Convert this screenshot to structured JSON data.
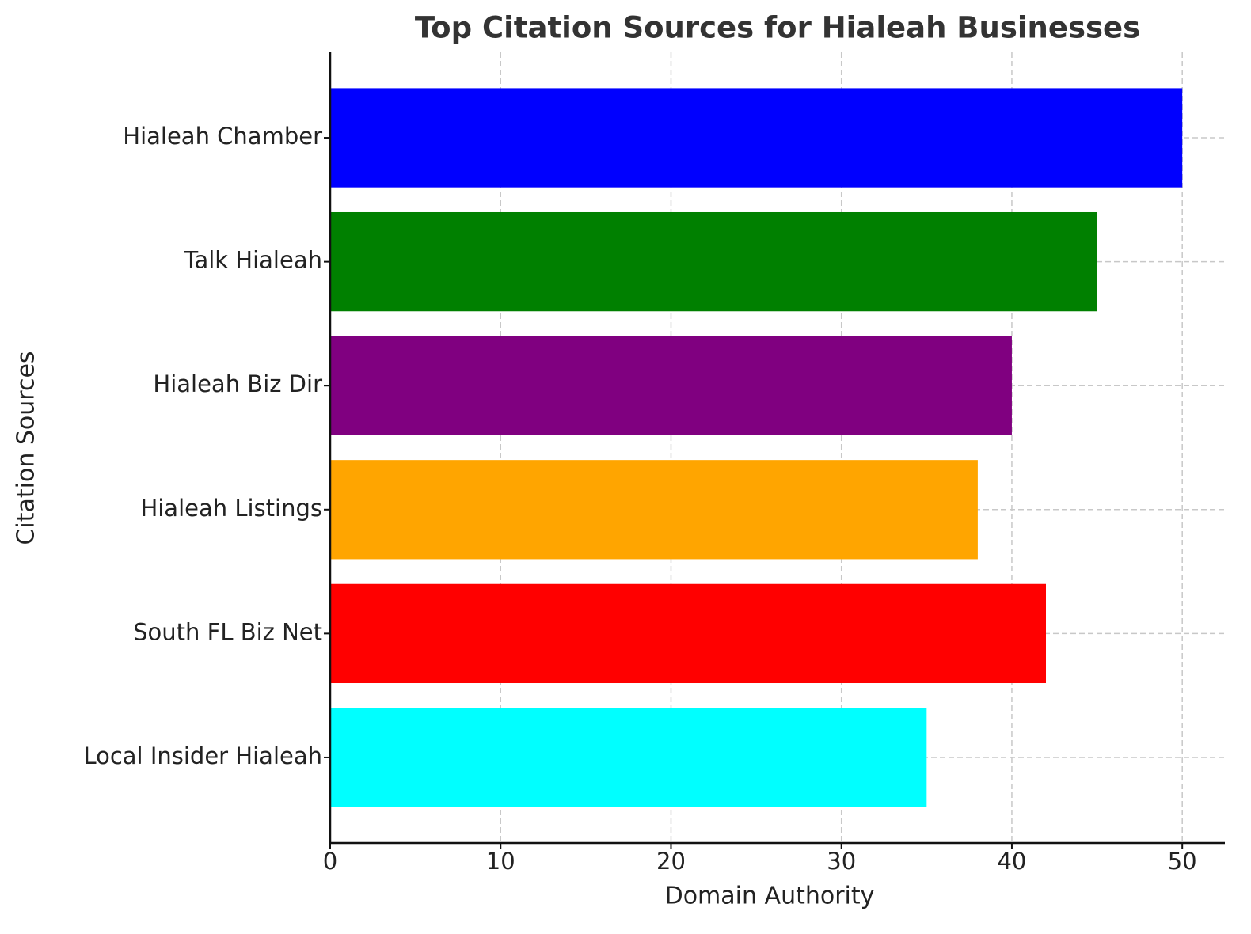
{
  "chart_data": {
    "type": "barh",
    "title": "Top Citation Sources for Hialeah Businesses",
    "x_label": "Domain Authority",
    "y_label": "Citation Sources",
    "categories": [
      "Hialeah Chamber",
      "Talk Hialeah",
      "Hialeah Biz Dir",
      "Hialeah Listings",
      "South FL Biz Net",
      "Local Insider Hialeah"
    ],
    "values": [
      50,
      45,
      40,
      38,
      42,
      35
    ],
    "colors": [
      "#0000ff",
      "#008000",
      "#800080",
      "#ffa500",
      "#ff0000",
      "#00ffff"
    ],
    "xlim": [
      0,
      52.5
    ],
    "xticks": [
      0,
      10,
      20,
      30,
      40,
      50
    ],
    "grid": true
  }
}
